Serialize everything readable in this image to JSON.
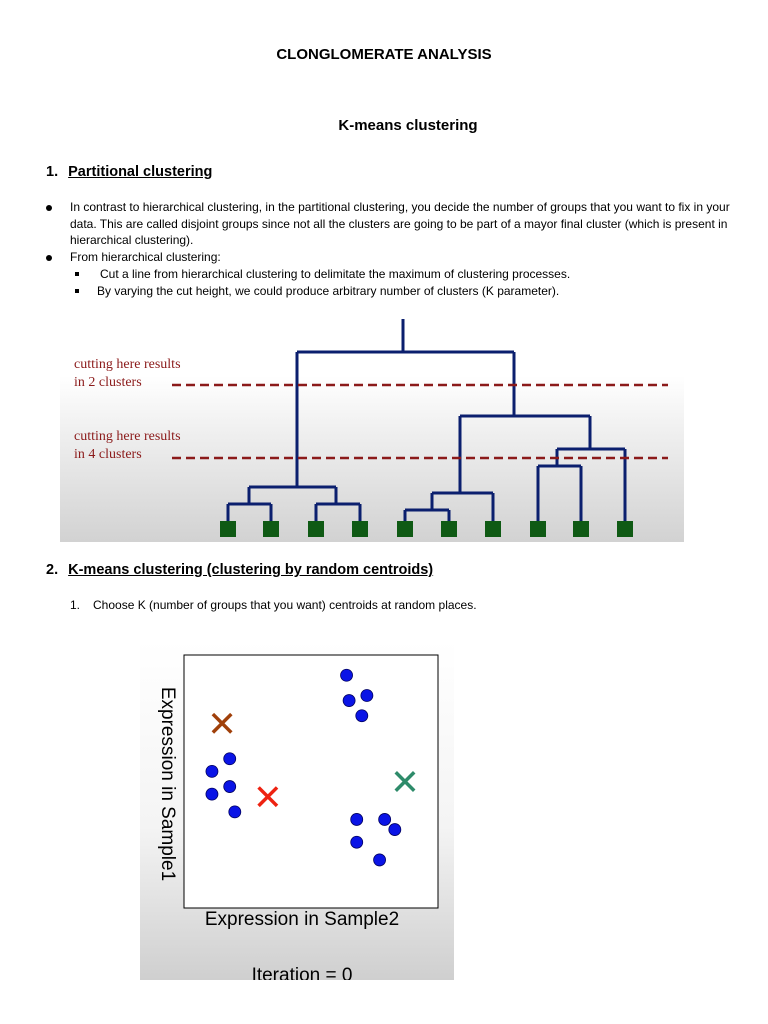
{
  "doc": {
    "title": "CLONGLOMERATE ANALYSIS",
    "subtitle": "K-means clustering",
    "section1": {
      "number": "1.",
      "heading": "Partitional clustering",
      "bullets": [
        "In contrast to hierarchical clustering, in the partitional clustering, you decide the number of groups that you want to fix in your data. This are called disjoint groups since not all the clusters are going to be part of a mayor final cluster (which is present in hierarchical clustering).",
        "From hierarchical clustering:"
      ],
      "sub_bullets": [
        "Cut a line from hierarchical clustering to delimitate the maximum of clustering processes.",
        "By varying the cut height, we could produce arbitrary number of clusters (K parameter)."
      ]
    },
    "dendrogram": {
      "cut1_label_line1": "cutting here results",
      "cut1_label_line2": "in 2 clusters",
      "cut2_label_line1": "cutting here results",
      "cut2_label_line2": "in 4 clusters",
      "line_color": "#0b1f6e",
      "cut_color": "#8b1a1a",
      "leaf_color": "#0f5a14"
    },
    "section2": {
      "number": "2.",
      "heading": "K-means clustering (clustering by random centroids)",
      "steps": [
        {
          "number": "1.",
          "text": "Choose K (number of groups that you want) centroids at random places."
        }
      ]
    },
    "scatter": {
      "ylabel": "Expression in Sample1",
      "xlabel": "Expression in Sample2",
      "caption": "Iteration = 0",
      "point_color": "#0a14e6",
      "centroid_colors": [
        "#a0400a",
        "#ee2211",
        "#2e8b6a"
      ]
    }
  },
  "chart_data": [
    {
      "type": "dendrogram",
      "leaves": 10,
      "cuts": [
        {
          "label": "cutting here results in 2 clusters",
          "clusters": 2
        },
        {
          "label": "cutting here results in 4 clusters",
          "clusters": 4
        }
      ]
    },
    {
      "type": "scatter",
      "xlabel": "Expression in Sample2",
      "ylabel": "Expression in Sample1",
      "caption": "Iteration = 0",
      "xlim": [
        0,
        10
      ],
      "ylim": [
        0,
        10
      ],
      "series": [
        {
          "marker": "circle",
          "points": [
            [
              6.4,
              9.2
            ],
            [
              6.5,
              8.2
            ],
            [
              7.2,
              8.4
            ],
            [
              7.0,
              7.6
            ],
            [
              1.8,
              5.9
            ],
            [
              1.1,
              5.4
            ],
            [
              1.8,
              4.8
            ],
            [
              1.1,
              4.5
            ],
            [
              2.0,
              3.8
            ],
            [
              6.8,
              3.5
            ],
            [
              7.9,
              3.5
            ],
            [
              8.3,
              3.1
            ],
            [
              6.8,
              2.6
            ],
            [
              7.7,
              1.9
            ]
          ]
        },
        {
          "marker": "x",
          "points": [
            [
              1.5,
              7.3
            ],
            [
              3.3,
              4.4
            ],
            [
              8.7,
              5.0
            ]
          ]
        }
      ]
    }
  ]
}
